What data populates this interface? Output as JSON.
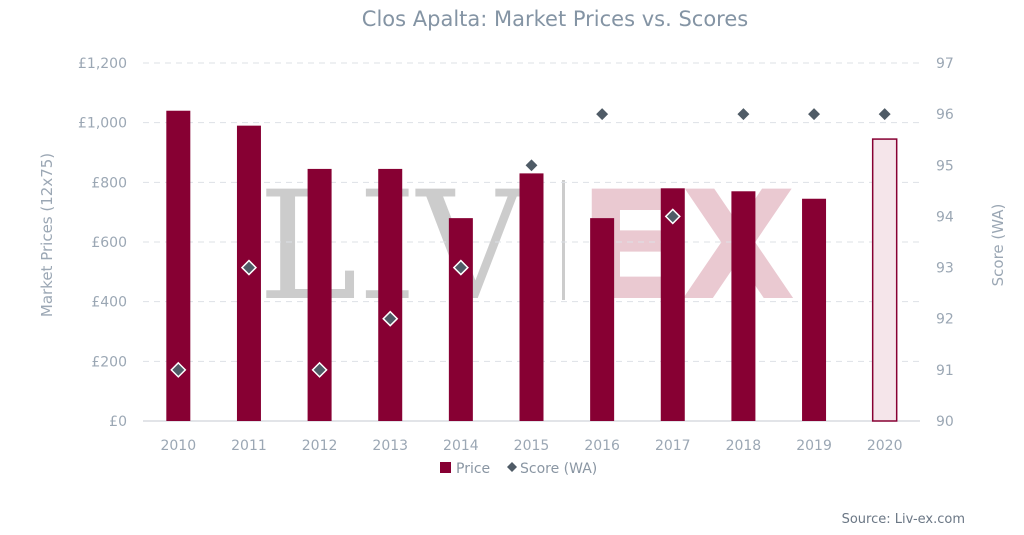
{
  "chart_data": {
    "type": "bar",
    "title": "Clos Apalta: Market Prices vs. Scores",
    "categories": [
      "2010",
      "2011",
      "2012",
      "2013",
      "2014",
      "2015",
      "2016",
      "2017",
      "2018",
      "2019",
      "2020"
    ],
    "ylabel": "Market Prices (12x75)",
    "y2label": "Score (WA)",
    "ylim": [
      0,
      1200
    ],
    "y2lim": [
      90,
      97
    ],
    "yticks": [
      "£0",
      "£200",
      "£400",
      "£600",
      "£800",
      "£1,000",
      "£1,200"
    ],
    "y2ticks": [
      "90",
      "91",
      "92",
      "93",
      "94",
      "95",
      "96",
      "97"
    ],
    "grid": true,
    "legend_position": "bottom",
    "series": [
      {
        "name": "Price",
        "type": "bar",
        "color": "#870033",
        "values": [
          1040,
          990,
          845,
          845,
          680,
          830,
          680,
          780,
          770,
          745,
          945
        ],
        "styles": [
          "solid",
          "solid",
          "solid",
          "solid",
          "solid",
          "solid",
          "solid",
          "solid",
          "solid",
          "solid",
          "outline"
        ]
      },
      {
        "name": "Score (WA)",
        "type": "scatter",
        "color": "#4f5b66",
        "marker": "diamond",
        "values": [
          91,
          93,
          91,
          92,
          93,
          95,
          96,
          94,
          96,
          96,
          96
        ]
      }
    ],
    "outline_fill": "#f5e5ea",
    "watermark": {
      "left": "LIV",
      "right": "EX"
    },
    "source": "Source: Liv-ex.com"
  }
}
